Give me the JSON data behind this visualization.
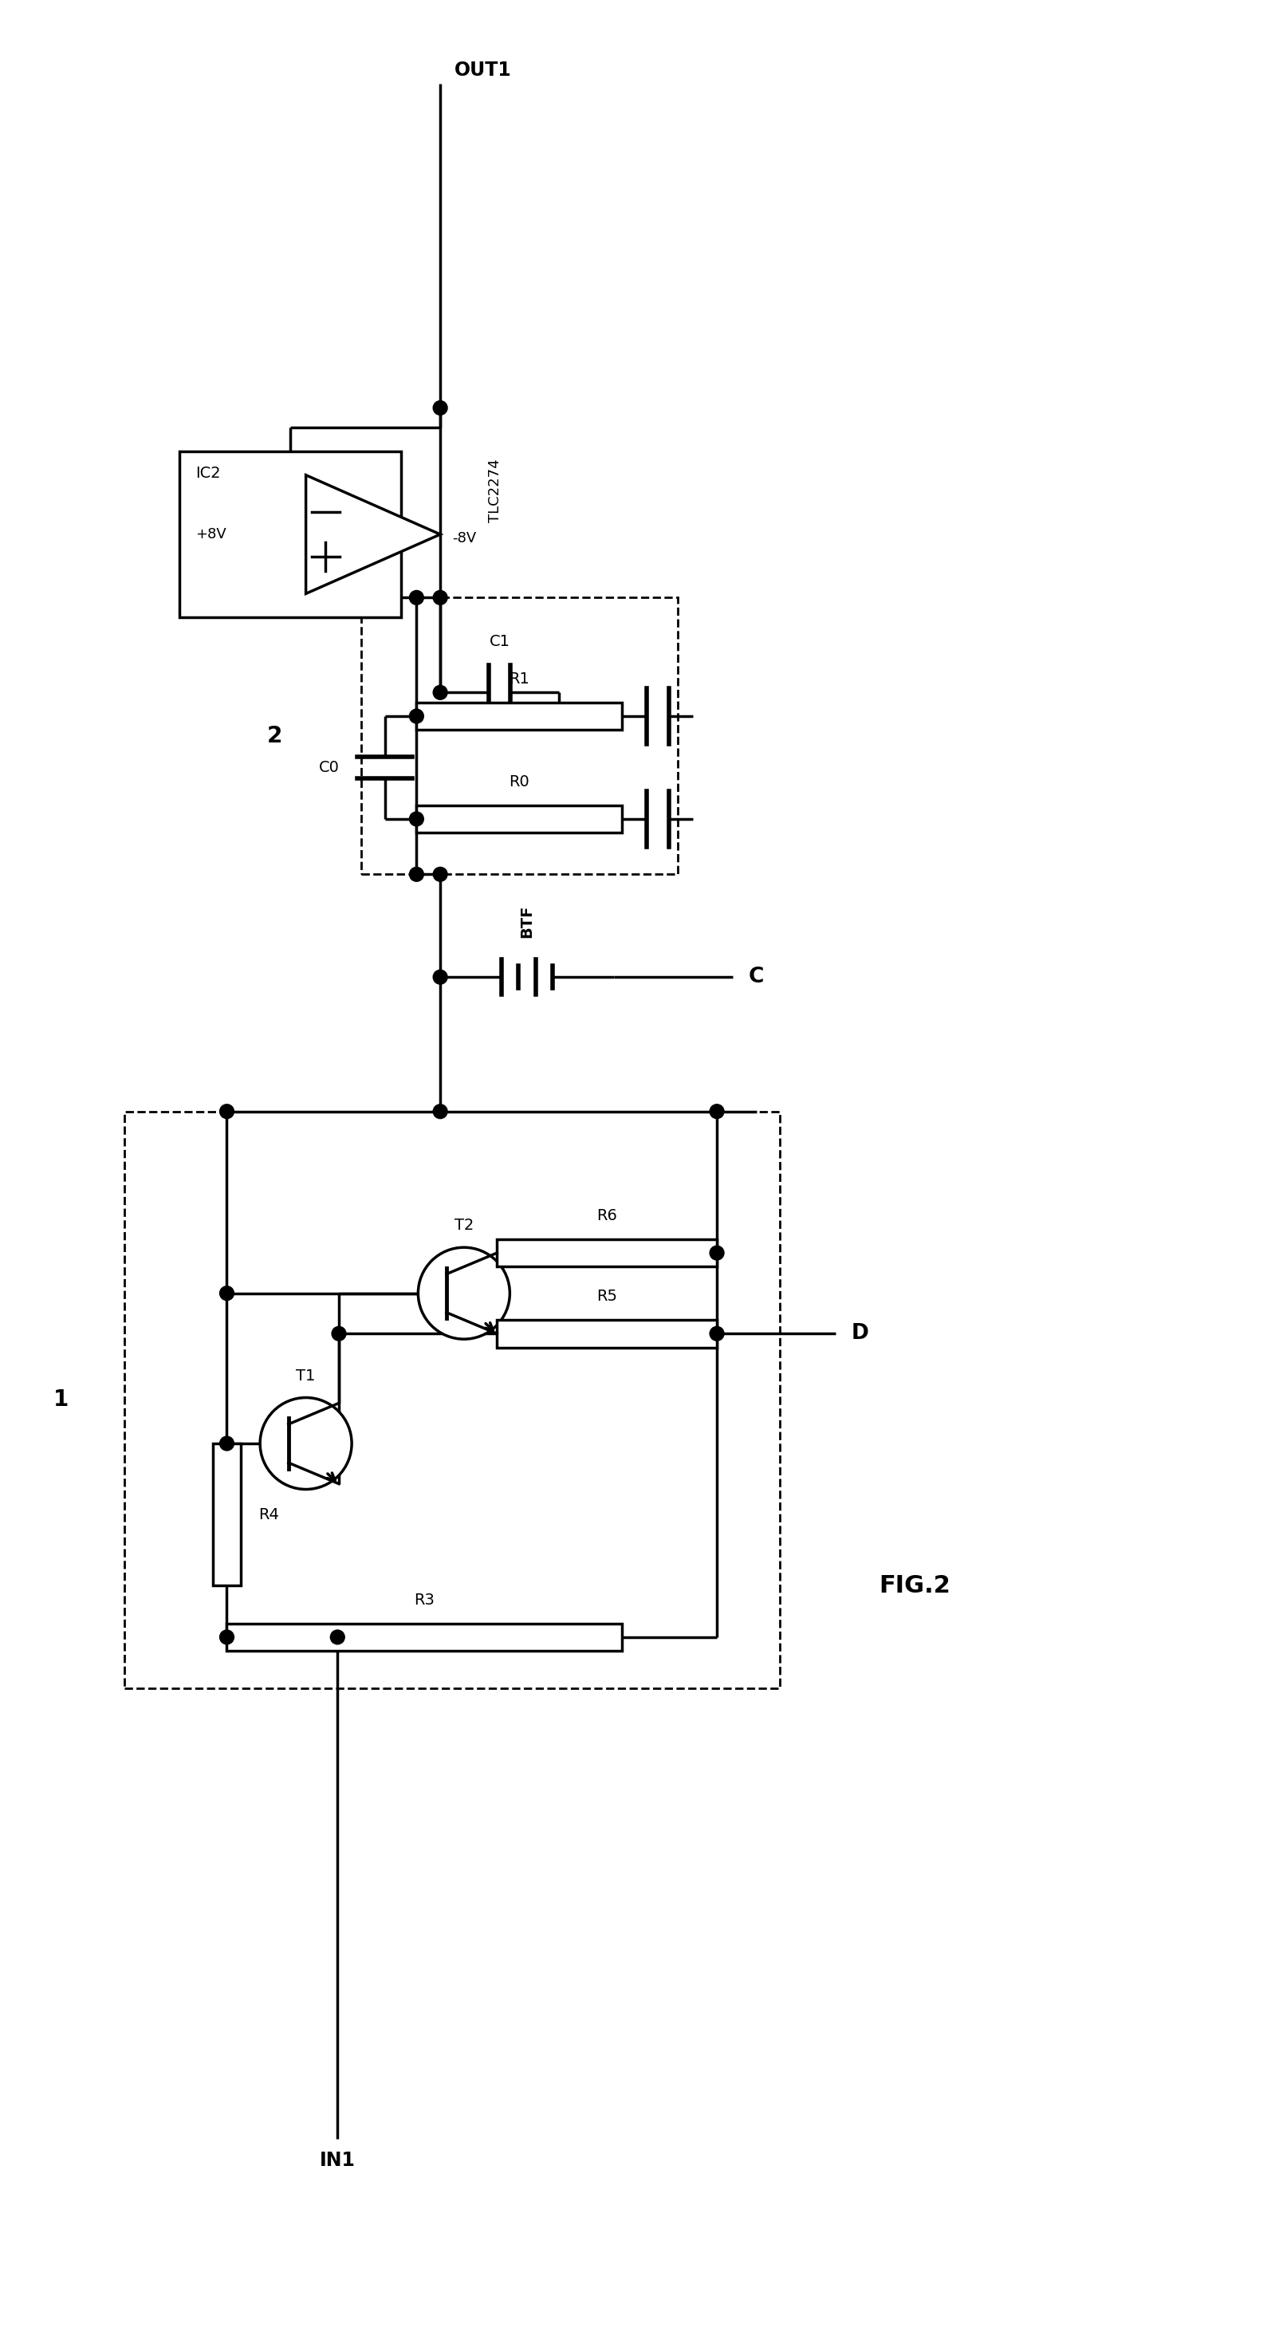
{
  "fig_label": "FIG.2",
  "bg_color": "#ffffff",
  "line_color": "#000000",
  "lw": 2.5,
  "dashed_lw": 2.0,
  "labels": {
    "OUT1": "OUT1",
    "IN1": "IN1",
    "IC2": "IC2",
    "TLC2274": "TLC2274",
    "C1": "C1",
    "C0": "C0",
    "R1": "R1",
    "R0": "R0",
    "T1": "T1",
    "T2": "T2",
    "R3": "R3",
    "R4": "R4",
    "R5": "R5",
    "R6": "R6",
    "BTF": "BTF",
    "C": "C",
    "D": "D",
    "mod1": "1",
    "mod2": "2",
    "plus8V": "+8V",
    "minus8V": "-8V"
  }
}
